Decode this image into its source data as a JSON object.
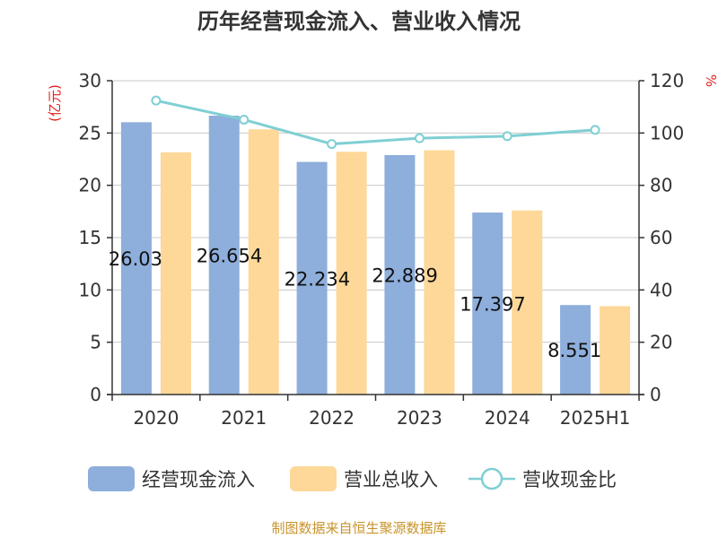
{
  "chart_data": {
    "type": "bar",
    "title": "历年经营现金流入、营业收入情况",
    "categories": [
      "2020",
      "2021",
      "2022",
      "2023",
      "2024",
      "2025H1"
    ],
    "series": [
      {
        "name": "经营现金流入",
        "type": "bar",
        "axis": "left",
        "color": "#8eaedb",
        "values": [
          26.03,
          26.654,
          22.234,
          22.889,
          17.397,
          8.551
        ],
        "labels": [
          "26.03",
          "26.654",
          "22.234",
          "22.889",
          "17.397",
          "8.551"
        ]
      },
      {
        "name": "营业总收入",
        "type": "bar",
        "axis": "left",
        "color": "#fdd898",
        "values": [
          23.15,
          25.35,
          23.2,
          23.35,
          17.6,
          8.45
        ]
      },
      {
        "name": "营收现金比",
        "type": "line",
        "axis": "right",
        "color": "#7fcfd4",
        "values": [
          112.4,
          105.1,
          95.8,
          98.0,
          98.8,
          101.2
        ]
      }
    ],
    "y_left": {
      "unit": "(亿元)",
      "min": 0,
      "max": 30,
      "ticks": [
        "0",
        "5",
        "10",
        "15",
        "20",
        "25",
        "30"
      ]
    },
    "y_right": {
      "unit": "%",
      "min": 0,
      "max": 120,
      "ticks": [
        "0",
        "20",
        "40",
        "60",
        "80",
        "100",
        "120"
      ]
    },
    "grid": true,
    "legend_position": "bottom"
  },
  "source_text": "制图数据来自恒生聚源数据库"
}
